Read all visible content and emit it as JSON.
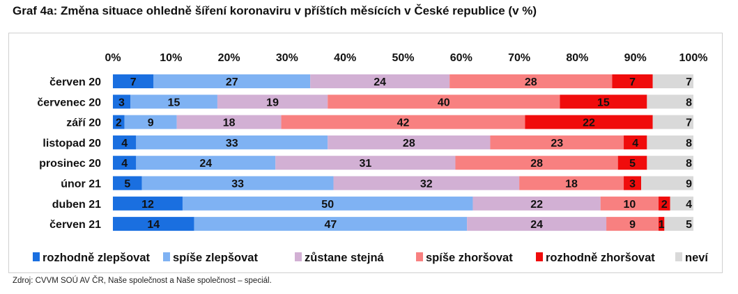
{
  "title": "Graf 4a: Změna situace ohledně šíření koronaviru v příštích měsících v České republice (v %)",
  "source": "Zdroj: CVVM SOÚ AV ČR, Naše společnost a Naše společnost – speciál.",
  "chart_data": {
    "type": "bar",
    "stacked": true,
    "orientation": "horizontal",
    "percent_100": true,
    "title": "Graf 4a: Změna situace ohledně šíření koronaviru v příštích měsících v České republice (v %)",
    "xlim": [
      0,
      100
    ],
    "x_ticks": [
      "0%",
      "10%",
      "20%",
      "30%",
      "40%",
      "50%",
      "60%",
      "70%",
      "80%",
      "90%",
      "100%"
    ],
    "x_axis_position": "top",
    "grid": false,
    "legend_position": "bottom",
    "categories": [
      "červen 20",
      "červenec 20",
      "září 20",
      "listopad 20",
      "prosinec 20",
      "únor 21",
      "duben 21",
      "červen 21"
    ],
    "series": [
      {
        "name": "rozhodně zlepšovat",
        "color": "#1a6fe0",
        "values": [
          7,
          3,
          2,
          4,
          4,
          5,
          12,
          14
        ]
      },
      {
        "name": "spíše zlepšovat",
        "color": "#7fb2f3",
        "values": [
          27,
          15,
          9,
          33,
          24,
          33,
          50,
          47
        ]
      },
      {
        "name": "zůstane stejná",
        "color": "#d2b0d4",
        "values": [
          24,
          19,
          18,
          28,
          31,
          32,
          22,
          24
        ]
      },
      {
        "name": "spíše zhoršovat",
        "color": "#f88080",
        "values": [
          28,
          40,
          42,
          23,
          28,
          18,
          10,
          9
        ]
      },
      {
        "name": "rozhodně zhoršovat",
        "color": "#f00c0c",
        "values": [
          7,
          15,
          22,
          4,
          5,
          3,
          2,
          1
        ]
      },
      {
        "name": "neví",
        "color": "#d9d9d9",
        "values": [
          7,
          8,
          7,
          8,
          8,
          9,
          4,
          5
        ]
      }
    ]
  }
}
